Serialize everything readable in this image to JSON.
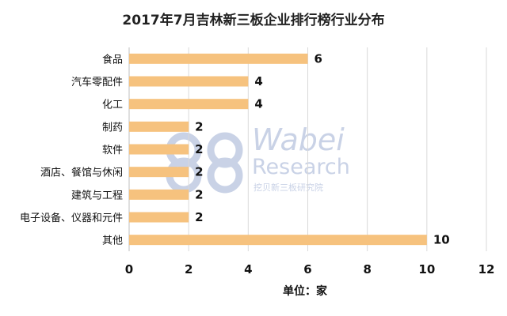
{
  "chart_data": {
    "type": "bar",
    "orientation": "horizontal",
    "title": "2017年7月吉林新三板企业排行榜行业分布",
    "categories": [
      "食品",
      "汽车零配件",
      "化工",
      "制药",
      "软件",
      "酒店、餐馆与休闲",
      "建筑与工程",
      "电子设备、仪器和元件",
      "其他"
    ],
    "values": [
      6,
      4,
      4,
      2,
      2,
      2,
      2,
      2,
      10
    ],
    "xlabel": "单位：家",
    "xlim": [
      0,
      12
    ],
    "xticks": [
      0,
      2,
      4,
      6,
      8,
      10,
      12
    ],
    "grid": true,
    "bar_color": "#f6c27e"
  },
  "watermark": {
    "line1": "Wabei",
    "line2": "Research",
    "line3": "挖贝新三板研究院"
  }
}
